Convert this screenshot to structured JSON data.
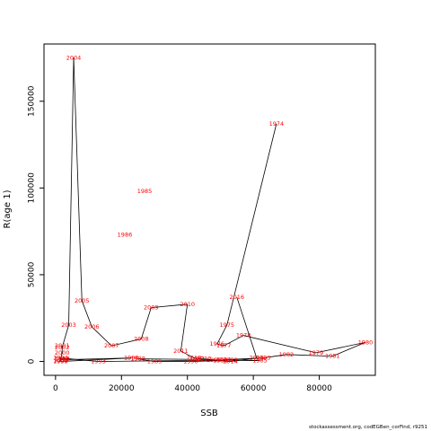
{
  "chart_data": {
    "type": "line",
    "xlabel": "SSB",
    "ylabel": "R(age 1)",
    "xlim": [
      -3500,
      97000
    ],
    "ylim": [
      -8000,
      183000
    ],
    "x_ticks": [
      0,
      20000,
      40000,
      60000,
      80000
    ],
    "x_tick_labels": [
      "0",
      "20000",
      "40000",
      "60000",
      "80000"
    ],
    "y_ticks": [
      0,
      50000,
      100000,
      150000
    ],
    "y_tick_labels": [
      "0",
      "50000",
      "100000",
      "150000"
    ],
    "grid": false,
    "line_color": "#000000",
    "label_color": "#ff0000",
    "points": [
      {
        "year": "1974",
        "x": 67000,
        "y": 137000
      },
      {
        "year": "1975",
        "x": 52000,
        "y": 21000
      },
      {
        "year": "1976",
        "x": 49000,
        "y": 10000
      },
      {
        "year": "1977",
        "x": 51000,
        "y": 9000
      },
      {
        "year": "1978",
        "x": 57000,
        "y": 15000
      },
      {
        "year": "1979",
        "x": 79000,
        "y": 5000
      },
      {
        "year": "1980",
        "x": 94000,
        "y": 11000
      },
      {
        "year": "1981",
        "x": 84000,
        "y": 3000
      },
      {
        "year": "1982",
        "x": 70000,
        "y": 4000
      },
      {
        "year": "1983",
        "x": 63000,
        "y": 2000
      },
      {
        "year": "1984",
        "x": 51000,
        "y": 1000
      },
      {
        "year": "1985",
        "x": 62000,
        "y": 500
      },
      {
        "year": "1986",
        "x": 48000,
        "y": 800
      },
      {
        "year": "1987",
        "x": 43000,
        "y": 1200
      },
      {
        "year": "1988",
        "x": 25000,
        "y": 1500
      },
      {
        "year": "1989",
        "x": 30000,
        "y": 0
      },
      {
        "year": "1990",
        "x": 41000,
        "y": 0
      },
      {
        "year": "1991",
        "x": 50000,
        "y": 500
      },
      {
        "year": "1992",
        "x": 53000,
        "y": 800
      },
      {
        "year": "1993",
        "x": 13000,
        "y": 0
      },
      {
        "year": "1994",
        "x": 1500,
        "y": 2000
      },
      {
        "year": "1995",
        "x": 1500,
        "y": 200
      },
      {
        "year": "1996",
        "x": 2000,
        "y": 1500
      },
      {
        "year": "1997",
        "x": 2000,
        "y": 1000
      },
      {
        "year": "1998",
        "x": 23000,
        "y": 2000
      },
      {
        "year": "1999",
        "x": 1500,
        "y": 0
      },
      {
        "year": "2000",
        "x": 2000,
        "y": 5000
      },
      {
        "year": "2001",
        "x": 2000,
        "y": 9000
      },
      {
        "year": "2002",
        "x": 2000,
        "y": 8000
      },
      {
        "year": "2003",
        "x": 4000,
        "y": 21000
      },
      {
        "year": "2004",
        "x": 5500,
        "y": 175000
      },
      {
        "year": "2005",
        "x": 8000,
        "y": 35000
      },
      {
        "year": "2006",
        "x": 11000,
        "y": 20000
      },
      {
        "year": "2007",
        "x": 17000,
        "y": 9000
      },
      {
        "year": "2008",
        "x": 26000,
        "y": 13000
      },
      {
        "year": "2009",
        "x": 29000,
        "y": 31000
      },
      {
        "year": "2010",
        "x": 40000,
        "y": 33000
      },
      {
        "year": "2011",
        "x": 38000,
        "y": 6000
      },
      {
        "year": "2012",
        "x": 42000,
        "y": 2000
      },
      {
        "year": "2013",
        "x": 45000,
        "y": 1500
      },
      {
        "year": "2014",
        "x": 53000,
        "y": 0
      },
      {
        "year": "2015",
        "x": 61000,
        "y": 2000
      },
      {
        "year": "2016",
        "x": 55000,
        "y": 37000
      },
      {
        "year": "1985b",
        "x": 27000,
        "y": 98000
      },
      {
        "year": "1986b",
        "x": 21000,
        "y": 73000
      }
    ],
    "path_order": [
      "1974",
      "1975",
      "1976",
      "1977",
      "1978",
      "1979",
      "1980",
      "1981",
      "1982",
      "1983",
      "1984",
      "1985",
      "1986",
      "1987",
      "1988",
      "1989",
      "1990",
      "1991",
      "1992",
      "1993",
      "1994",
      "1995",
      "1996",
      "1997",
      "1998",
      "1999",
      "2000",
      "2001",
      "2002",
      "2003",
      "2004",
      "2005",
      "2006",
      "2007",
      "2008",
      "2009",
      "2010",
      "2011",
      "2012",
      "2013",
      "2014",
      "2015",
      "2016"
    ]
  },
  "credit": "stockassessment.org, codEGBen_corFind, r9251"
}
